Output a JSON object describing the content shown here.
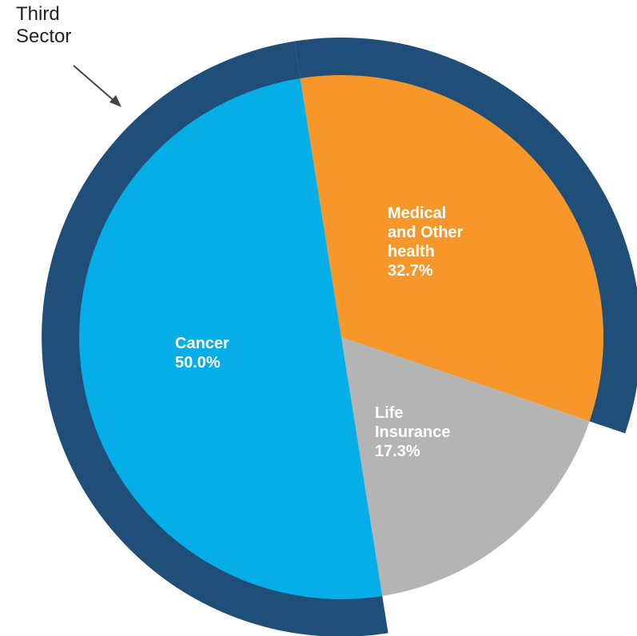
{
  "chart_data": {
    "type": "pie",
    "categories": [
      "Medical and Other health",
      "Life Insurance",
      "Cancer"
    ],
    "values": [
      32.7,
      17.3,
      50.0
    ],
    "value_labels": [
      "32.7%",
      "17.3%",
      "50.0%"
    ],
    "colors": [
      "#f7972a",
      "#b4b4b4",
      "#06aee8"
    ],
    "start_angle": -9,
    "ring": {
      "label": "Third Sector",
      "covers": [
        "Medical and Other health",
        "Cancer"
      ],
      "color": "#1f4e79"
    }
  }
}
